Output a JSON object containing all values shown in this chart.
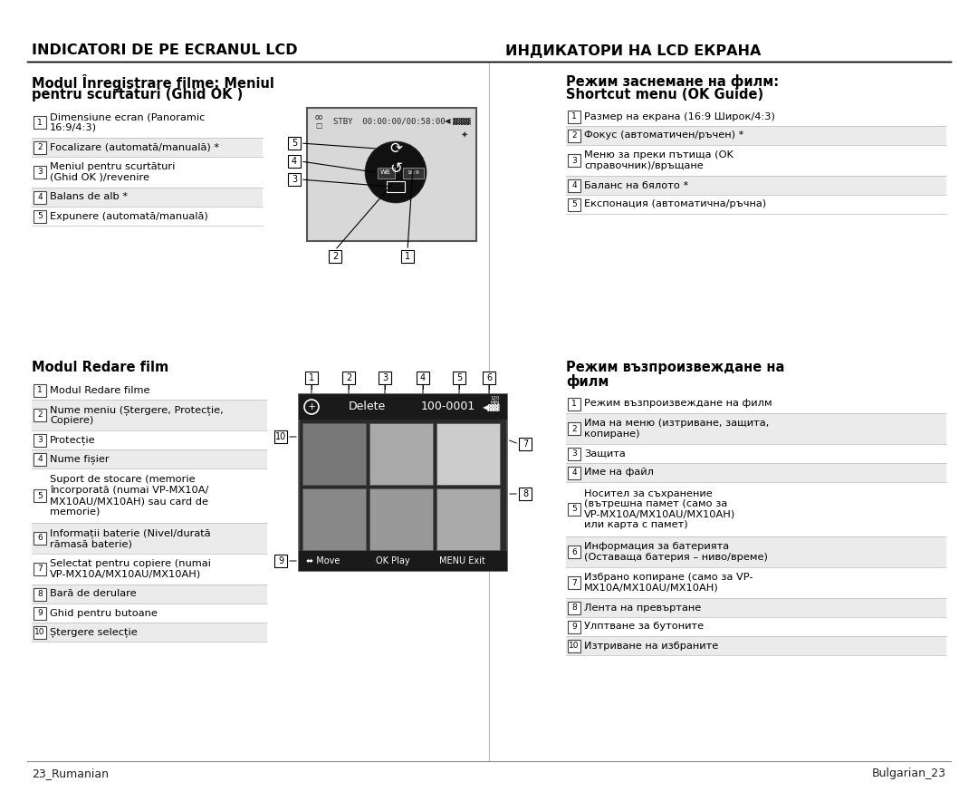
{
  "bg_color": "#ffffff",
  "title_left": "INDICATORI DE PE ECRANUL LCD",
  "title_right": "ИНДИКАТОРИ НА LCD ЕКРАНА",
  "section1_title_line1": "Modul Înregistrare filme: Meniul",
  "section1_title_line2": "pentru scurtături (Ghid OK )",
  "section1_items": [
    [
      "1",
      "Dimensiune ecran (Panoramic\n16:9/4:3)"
    ],
    [
      "2",
      "Focalizare (automată/manuală) *"
    ],
    [
      "3",
      "Meniul pentru scurtături\n(Ghid OK )/revenire"
    ],
    [
      "4",
      "Balans de alb *"
    ],
    [
      "5",
      "Expunere (automată/manuală)"
    ]
  ],
  "section2_title": "Modul Redare film",
  "section2_items": [
    [
      "1",
      "Modul Redare filme"
    ],
    [
      "2",
      "Nume meniu (Ștergere, Protecție,\nCopiere)"
    ],
    [
      "3",
      "Protecție"
    ],
    [
      "4",
      "Nume fișier"
    ],
    [
      "5",
      "Suport de stocare (memorie\nîncorporată (numai VP-MX10A/\nMX10AU/MX10AH) sau card de\nmemorie)"
    ],
    [
      "6",
      "Informații baterie (Nivel/durată\nrămasă baterie)"
    ],
    [
      "7",
      "Selectat pentru copiere (numai\nVP-MX10A/MX10AU/MX10AH)"
    ],
    [
      "8",
      "Bară de derulare"
    ],
    [
      "9",
      "Ghid pentru butoane"
    ],
    [
      "10",
      "Ștergere selecție"
    ]
  ],
  "section3_title_line1": "Режим заснемане на филм:",
  "section3_title_line2": "Shortcut menu (OK Guide)",
  "section3_items": [
    [
      "1",
      "Размер на екрана (16:9 Широк/4:3)"
    ],
    [
      "2",
      "Фокус (автоматичен/ръчен) *"
    ],
    [
      "3",
      "Меню за преки пътища (OK\nсправочник)/връщане"
    ],
    [
      "4",
      "Баланс на бялото *"
    ],
    [
      "5",
      "Експонация (автоматична/ръчна)"
    ]
  ],
  "section4_title_line1": "Режим възпроизвеждане на",
  "section4_title_line2": "филм",
  "section4_items": [
    [
      "1",
      "Режим възпроизвеждане на филм"
    ],
    [
      "2",
      "Има на меню (изтриване, защита,\nкопиране)"
    ],
    [
      "3",
      "Защита"
    ],
    [
      "4",
      "Име на файл"
    ],
    [
      "5",
      "Носител за съхранение\n(вътрешна памет (само за\nVP-MX10A/MX10AU/MX10AH)\nили карта с памет)"
    ],
    [
      "6",
      "Информация за батерията\n(Оставаща батерия – ниво/време)"
    ],
    [
      "7",
      "Избрано копиране (само за VP-\nMX10A/MX10AU/MX10AH)"
    ],
    [
      "8",
      "Лента на превъртане"
    ],
    [
      "9",
      "Улптване за бутоните"
    ],
    [
      "10",
      "Изтриване на избраните"
    ]
  ],
  "footer_left": "23_Rumanian",
  "footer_right": "Bulgarian_23",
  "cam_screen_color": "#d8d8d8",
  "cam_circle_color": "#111111",
  "vid_bg_color": "#2a2a2a",
  "vid_header_color": "#1a1a1a",
  "vid_footer_color": "#1a1a1a",
  "thumb_colors_row1": [
    "#888888",
    "#aaaaaa",
    "#bbbbbb"
  ],
  "thumb_colors_row2": [
    "#999999",
    "#aaaaaa",
    "#bbbbbb"
  ],
  "item_alt_bg": "#ebebeb",
  "item_line_color": "#bbbbbb",
  "num_box_color": "#ffffff",
  "num_box_border": "#444444"
}
